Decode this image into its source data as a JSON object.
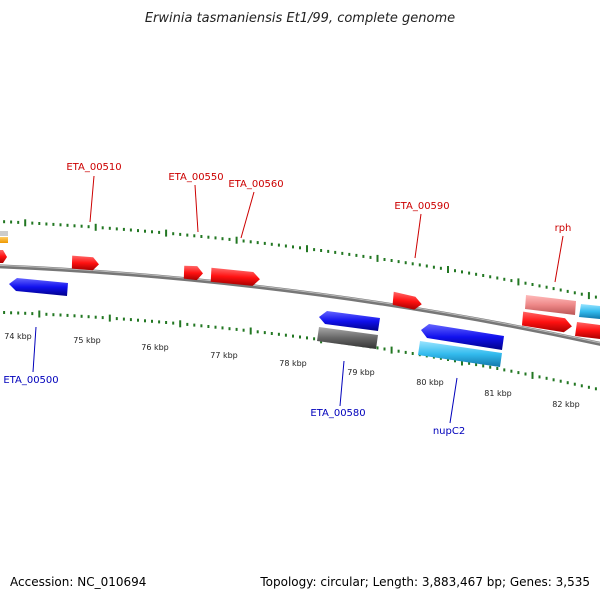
{
  "title": "Erwinia tasmaniensis Et1/99, complete genome",
  "footer": {
    "accession": "Accession: NC_010694",
    "summary": "Topology: circular; Length: 3,883,467 bp; Genes: 3,535"
  },
  "scale_labels": [
    "74 kbp",
    "75 kbp",
    "76 kbp",
    "77 kbp",
    "78 kbp",
    "79 kbp",
    "80 kbp",
    "81 kbp",
    "82 kbp"
  ],
  "gene_labels": [
    {
      "name": "ETA_00510",
      "color": "#cc0000"
    },
    {
      "name": "ETA_00550",
      "color": "#cc0000"
    },
    {
      "name": "ETA_00560",
      "color": "#cc0000"
    },
    {
      "name": "ETA_00590",
      "color": "#cc0000"
    },
    {
      "name": "rph",
      "color": "#cc0000"
    },
    {
      "name": "ETA_00500",
      "color": "#0000bb"
    },
    {
      "name": "ETA_00580",
      "color": "#0000bb"
    },
    {
      "name": "nupC2",
      "color": "#0000bb"
    }
  ],
  "colors": {
    "forward_gene": "#ff1111",
    "reverse_gene": "#1111ee",
    "rna_gene": "#33bbee",
    "pseudo_forward": "#ee8888",
    "pseudo_reverse": "#666666",
    "backbone": "#888888",
    "ticks": "#227722"
  }
}
